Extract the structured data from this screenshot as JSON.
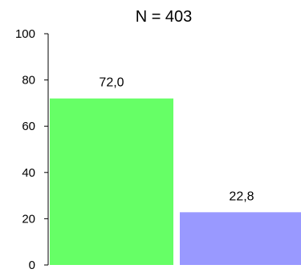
{
  "chart_data": {
    "type": "bar",
    "title": "N = 403",
    "categories": [
      "",
      ""
    ],
    "values": [
      72.0,
      22.8
    ],
    "value_labels": [
      "72,0",
      "22,8"
    ],
    "colors": [
      "#66ff66",
      "#9999ff"
    ],
    "ylim": [
      0,
      100
    ],
    "yticks": [
      0,
      20,
      40,
      60,
      80,
      100
    ],
    "ytick_labels": [
      "0",
      "20",
      "40",
      "60",
      "80",
      "100"
    ],
    "grid": false,
    "legend": "none",
    "xlabel": "",
    "ylabel": ""
  }
}
